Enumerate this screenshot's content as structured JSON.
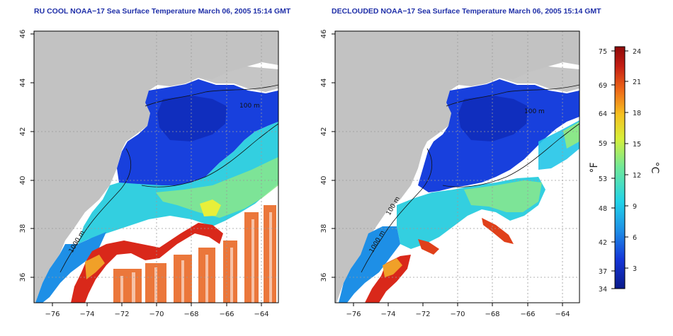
{
  "panels": [
    {
      "id": "left",
      "title": "RU COOL NOAA−17 Sea Surface Temperature March 06, 2005 15:14 GMT",
      "contour_labels": [
        "100 m",
        "1000 m"
      ]
    },
    {
      "id": "right",
      "title": "DECLOUDED NOAA−17 Sea Surface Temperature March 06, 2005 15:14 GMT",
      "contour_labels": [
        "100 m",
        "100 m",
        "1000 m"
      ]
    }
  ],
  "map_axes": {
    "x_ticks": [
      "−76",
      "−74",
      "−72",
      "−70",
      "−68",
      "−66",
      "−64"
    ],
    "y_ticks": [
      "36",
      "38",
      "40",
      "42",
      "44",
      "46"
    ]
  },
  "colorbar": {
    "fahrenheit_ticks": [
      "75",
      "69",
      "64",
      "59",
      "53",
      "48",
      "42",
      "37",
      "34"
    ],
    "celsius_ticks": [
      "24",
      "21",
      "18",
      "15",
      "12",
      "9",
      "6",
      "3"
    ],
    "fahrenheit_unit": "°F",
    "celsius_unit": "°C",
    "colors": [
      "#0a1a8a",
      "#1536d8",
      "#1e8fe6",
      "#22d3e8",
      "#6fe89a",
      "#d7ef3a",
      "#f5c020",
      "#ee6a18",
      "#c41e14",
      "#8e0a0a"
    ]
  },
  "colors": {
    "land": "#c2c2c2",
    "title": "#1f2fa8",
    "grid": "#9a9a9a"
  }
}
